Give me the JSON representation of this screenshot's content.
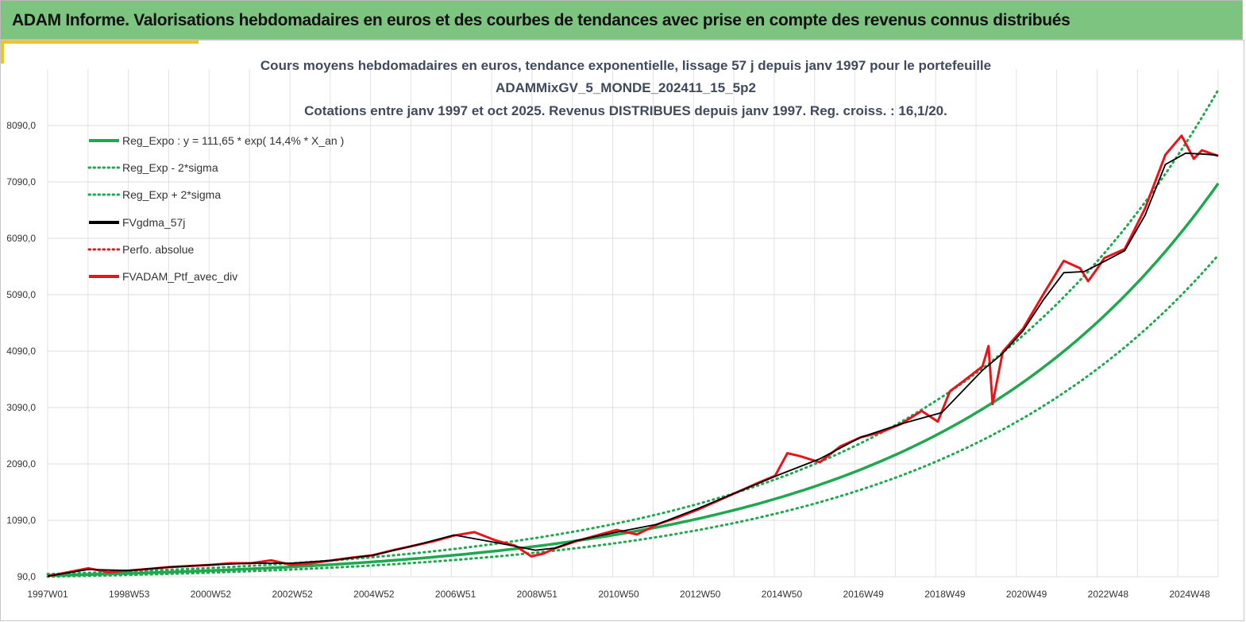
{
  "banner": {
    "title": "ADAM Informe. Valorisations hebdomadaires en euros et des courbes de tendances avec prise en compte des revenus connus distribués"
  },
  "colors": {
    "banner_bg": "#7cc47f",
    "accent": "#f3c417",
    "trend": "#1fa84f",
    "smooth": "#000000",
    "portfolio": "#e8141b",
    "title_text": "#404a5c"
  },
  "chart_data": {
    "type": "line",
    "title_lines": [
      "Cours moyens hebdomadaires  en euros, tendance exponentielle, lissage 57 j depuis janv 1997 pour le portefeuille",
      "ADAMMixGV_5_MONDE_202411_15_5p2",
      "Cotations  entre janv 1997 et oct 2025. Revenus DISTRIBUES depuis janv 1997. Reg. croiss. : 16,1/20."
    ],
    "x_tick_labels": [
      "1997W01",
      "1998W53",
      "2000W52",
      "2002W52",
      "2004W52",
      "2006W51",
      "2008W51",
      "2010W50",
      "2012W50",
      "2014W50",
      "2016W49",
      "2018W49",
      "2020W49",
      "2022W48",
      "2024W48"
    ],
    "x_range": [
      1997.0,
      2025.8
    ],
    "y_tick_labels": [
      "90,0",
      "1090,0",
      "2090,0",
      "3090,0",
      "4090,0",
      "5090,0",
      "6090,0",
      "7090,0",
      "8090,0"
    ],
    "y_ticks": [
      90,
      1090,
      2090,
      3090,
      4090,
      5090,
      6090,
      7090,
      8090
    ],
    "ylim": [
      90,
      8090
    ],
    "legend": [
      {
        "key": "trend",
        "label": "Reg_Expo : y = 111,65 * exp( 14,4% *  X_an )",
        "style": "solid",
        "color": "#1fa84f"
      },
      {
        "key": "lower",
        "label": "Reg_Exp - 2*sigma",
        "style": "dotted",
        "color": "#1fa84f"
      },
      {
        "key": "upper",
        "label": "Reg_Exp + 2*sigma",
        "style": "dotted",
        "color": "#1fa84f"
      },
      {
        "key": "smooth",
        "label": "FVgdma_57j",
        "style": "solid",
        "color": "#000000"
      },
      {
        "key": "perfo",
        "label": "Perfo. absolue",
        "style": "dotted",
        "color": "#e8141b"
      },
      {
        "key": "portfolio",
        "label": "FVADAM_Ptf_avec_div",
        "style": "solid",
        "color": "#e8141b"
      }
    ],
    "trend": {
      "a": 111.65,
      "rate": 0.144,
      "lower_factor": 0.82,
      "upper_factor": 1.235
    },
    "portfolio": {
      "x": [
        1997.0,
        1997.5,
        1998.0,
        1998.5,
        1999.0,
        1999.5,
        2000.0,
        2000.5,
        2001.0,
        2001.5,
        2002.0,
        2002.5,
        2003.0,
        2003.5,
        2004.0,
        2004.5,
        2005.0,
        2005.5,
        2006.0,
        2006.5,
        2007.0,
        2007.5,
        2008.0,
        2008.5,
        2008.9,
        2009.2,
        2009.5,
        2010.0,
        2010.5,
        2011.0,
        2011.5,
        2012.0,
        2012.5,
        2013.0,
        2013.5,
        2014.0,
        2014.5,
        2014.9,
        2015.2,
        2015.5,
        2016.0,
        2016.5,
        2017.0,
        2017.5,
        2018.0,
        2018.5,
        2018.9,
        2019.2,
        2019.5,
        2020.0,
        2020.15,
        2020.25,
        2020.5,
        2021.0,
        2021.5,
        2022.0,
        2022.4,
        2022.6,
        2022.8,
        2023.0,
        2023.5,
        2024.0,
        2024.5,
        2024.9,
        2025.2,
        2025.4,
        2025.6,
        2025.8
      ],
      "values": [
        100,
        170,
        240,
        170,
        200,
        230,
        260,
        280,
        300,
        330,
        330,
        380,
        300,
        330,
        380,
        430,
        470,
        560,
        640,
        720,
        820,
        880,
        740,
        640,
        450,
        500,
        600,
        720,
        820,
        920,
        840,
        1020,
        1140,
        1280,
        1440,
        1600,
        1760,
        1880,
        2280,
        2230,
        2120,
        2400,
        2560,
        2650,
        2800,
        3030,
        2840,
        3380,
        3540,
        3820,
        4180,
        3150,
        4080,
        4490,
        5100,
        5690,
        5560,
        5330,
        5530,
        5740,
        5900,
        6620,
        7570,
        7910,
        7500,
        7650,
        7600,
        7550
      ]
    },
    "smooth": {
      "x": [
        1997.0,
        1998.0,
        1999.0,
        2000.0,
        2001.0,
        2002.0,
        2003.0,
        2004.0,
        2005.0,
        2006.0,
        2007.0,
        2008.0,
        2009.0,
        2009.5,
        2010.0,
        2011.0,
        2012.0,
        2013.0,
        2014.0,
        2015.0,
        2016.0,
        2017.0,
        2018.0,
        2019.0,
        2020.0,
        2020.5,
        2021.0,
        2021.5,
        2022.0,
        2022.5,
        2023.0,
        2023.5,
        2024.0,
        2024.5,
        2025.0,
        2025.5,
        2025.8
      ],
      "values": [
        100,
        220,
        200,
        260,
        300,
        330,
        330,
        380,
        470,
        640,
        830,
        700,
        560,
        600,
        730,
        880,
        1020,
        1300,
        1600,
        1900,
        2180,
        2560,
        2800,
        3000,
        3750,
        4050,
        4450,
        5000,
        5480,
        5500,
        5680,
        5870,
        6500,
        7400,
        7600,
        7580,
        7560
      ]
    }
  }
}
